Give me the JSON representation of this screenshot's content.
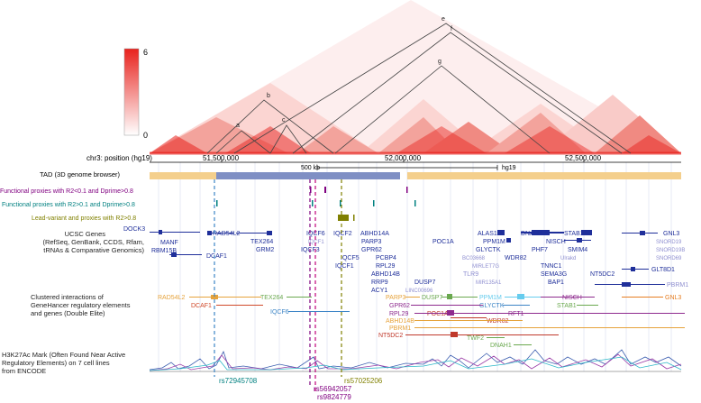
{
  "colorbar": {
    "max": "6",
    "min": "0",
    "color_high": "#e8221d"
  },
  "tad_letters": [
    "a",
    "b",
    "c",
    "e",
    "f",
    "g"
  ],
  "position_label": "chr3: position (hg19)",
  "position_ticks": [
    "51,500,000",
    "52,000,000",
    "52,500,000"
  ],
  "scale_bar": {
    "label": "500 kb",
    "assembly": "hg19"
  },
  "tracks": {
    "tad": "TAD (3D genome browser)",
    "func_low": "Functional proxies with R2<0.1 and Dprime>0.8",
    "func_high": "Functional proxies with R2>0.1 and Dprime>0.8",
    "lead": "Lead-variant and proxies with R2>0.8",
    "ucsc": [
      "UCSC Genes",
      "(RefSeq, GenBank, CCDS, Rfam,",
      "tRNAs & Comparative Genomics)"
    ],
    "clustered": [
      "Clustered interactions of",
      "GeneHancer regulatory elements",
      "and genes (Double Elite)"
    ],
    "h3k27ac": [
      "H3K27Ac Mark (Often Found Near Active",
      "Regulatory Elements) on 7 cell lines",
      "from ENCODE"
    ]
  },
  "colors": {
    "purple": "#800080",
    "teal": "#008080",
    "olive": "#808000",
    "tad_orange": "#f4cf8c",
    "tad_blue": "#7f8fc4",
    "gene_navy": "#1f2f9a",
    "gene_light": "#8f8fd0"
  },
  "ucsc_genes": [
    "DOCK3",
    "MANF",
    "RBM15B",
    "DCAF1",
    "RAD54L2",
    "TEX264",
    "GRM2",
    "IQCF6",
    "IQCF1",
    "IQCF3",
    "IQCF2",
    "ABHD14A",
    "PARP3",
    "GPR62",
    "IQCF5",
    "IQCF1",
    "PCBP4",
    "RPL29",
    "ABHD14B",
    "RRP9",
    "ACY1",
    "DUSP7",
    "LINC00696",
    "POC1A",
    "ALAS1",
    "PPM1M",
    "GLYCTK",
    "BC03668",
    "MIRLET7G",
    "TLR9",
    "MIR135A1",
    "WDR82",
    "DNAH1",
    "STAB1",
    "NISCH",
    "PHF7",
    "Ulrakd",
    "TNNC1",
    "SEMA3G",
    "BAP1",
    "SMIM4",
    "NT5DC2",
    "GNL3",
    "SNORD19",
    "SNORD19B",
    "SNORD69",
    "GLT8D1",
    "PBRM1"
  ],
  "interactions": [
    "RAD54L2",
    "DCAF1",
    "TEX264",
    "IQCF6",
    "PARP3",
    "GPR62",
    "RPL29",
    "ABHD14B",
    "PBRM1",
    "NT5DC2",
    "DUSP7",
    "POC1A",
    "PPM1M",
    "GLYCTK",
    "WDR82",
    "RFT1",
    "TWF2",
    "DNAH1",
    "NISCH",
    "STAB1",
    "GNL3"
  ],
  "snps": [
    "rs72945708",
    "rs56942057",
    "rs9824779",
    "rs57025206"
  ]
}
